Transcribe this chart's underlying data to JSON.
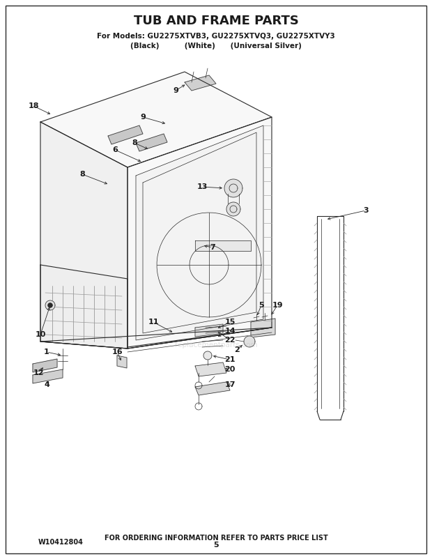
{
  "title": "TUB AND FRAME PARTS",
  "subtitle": "For Models: GU2275XTVB3, GU2275XTVQ3, GU2275XTVY3",
  "subtitle2": "(Black)          (White)      (Universal Silver)",
  "footer_left": "W10412804",
  "footer_center": "FOR ORDERING INFORMATION REFER TO PARTS PRICE LIST",
  "footer_page": "5",
  "bg_color": "#ffffff",
  "line_color": "#2a2a2a",
  "text_color": "#1a1a1a",
  "watermark": "replacementparts.com",
  "figsize": [
    6.2,
    8.02
  ],
  "dpi": 100
}
